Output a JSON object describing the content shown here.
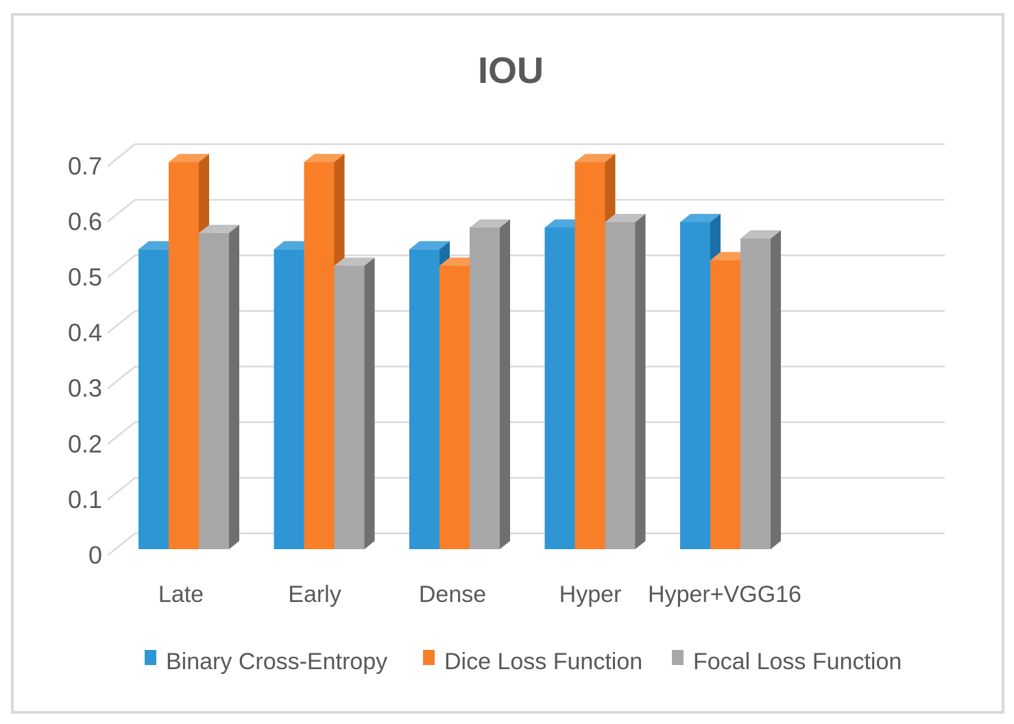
{
  "figure": {
    "title": "IOU",
    "background_color": "#FFFFFF",
    "frame_border_color": "#D9D9D9",
    "text_color": "#595959"
  },
  "chart_data": {
    "type": "bar",
    "subtype": "3d-clustered-column",
    "title": "IOU",
    "categories": [
      "Late",
      "Early",
      "Dense",
      "Hyper",
      "Hyper+VGG16"
    ],
    "series": [
      {
        "name": "Binary Cross-Entropy",
        "key": "binary-cross-entropy",
        "color": "#2E96D5",
        "color_side": "#1C6FA6",
        "color_top": "#4FA8DE",
        "values": [
          0.55,
          0.55,
          0.55,
          0.59,
          0.6
        ]
      },
      {
        "name": "Dice Loss Function",
        "key": "dice-loss-function",
        "color": "#F87E27",
        "color_side": "#C45F17",
        "color_top": "#F99B50",
        "values": [
          0.71,
          0.71,
          0.52,
          0.71,
          0.53
        ]
      },
      {
        "name": "Focal Loss Function",
        "key": "focal-loss-function",
        "color": "#A7A7A7",
        "color_side": "#6F6F6F",
        "color_top": "#C0C0C0",
        "values": [
          0.58,
          0.52,
          0.59,
          0.6,
          0.57
        ]
      }
    ],
    "xlabel": "",
    "ylabel": "",
    "y_axis": {
      "min": 0,
      "max": 0.7,
      "step": 0.1,
      "tick_labels": [
        "0",
        "0.1",
        "0.2",
        "0.3",
        "0.4",
        "0.5",
        "0.6",
        "0.7"
      ]
    },
    "ylim": [
      0,
      0.7
    ],
    "grid": true,
    "gridline_color": "#D9D9D9",
    "legend_position": "bottom",
    "legend_labels": [
      "Binary Cross-Entropy",
      "Dice Loss Function",
      "Focal Loss Function"
    ]
  }
}
